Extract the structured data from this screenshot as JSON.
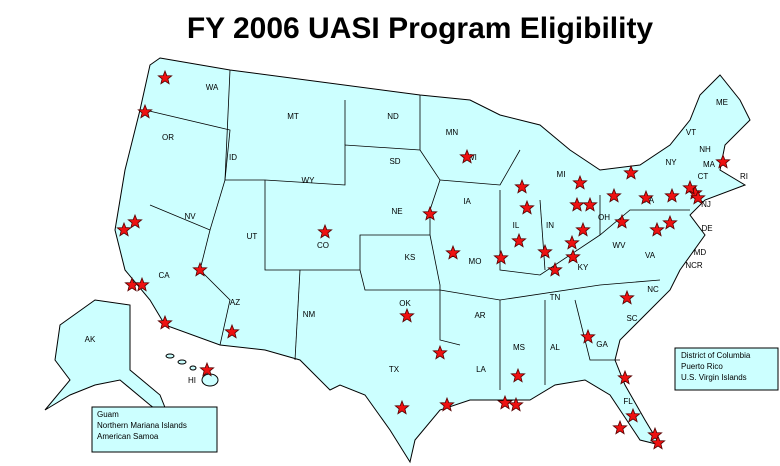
{
  "title": "FY 2006 UASI Program Eligibility",
  "state_labels": [
    "WA",
    "MT",
    "ND",
    "MN",
    "ME",
    "OR",
    "ID",
    "SD",
    "WI",
    "MI",
    "VT",
    "NH",
    "NY",
    "MA",
    "RI",
    "CT",
    "WY",
    "NE",
    "IA",
    "NJ",
    "PA",
    "OH",
    "IL",
    "IN",
    "DE",
    "NV",
    "UT",
    "CO",
    "KS",
    "MO",
    "WV",
    "MD",
    "VA",
    "NCR",
    "KY",
    "CA",
    "TN",
    "NC",
    "OK",
    "AR",
    "SC",
    "AZ",
    "NM",
    "AK",
    "GA",
    "AL",
    "MS",
    "LA",
    "TX",
    "HI",
    "FL"
  ],
  "territory_boxes": [
    {
      "lines": [
        "District of Columbia",
        "Puerto Rico",
        "U.S. Virgin Islands"
      ]
    },
    {
      "lines": [
        "Guam",
        "Northern Mariana Islands",
        "American Samoa"
      ]
    }
  ]
}
